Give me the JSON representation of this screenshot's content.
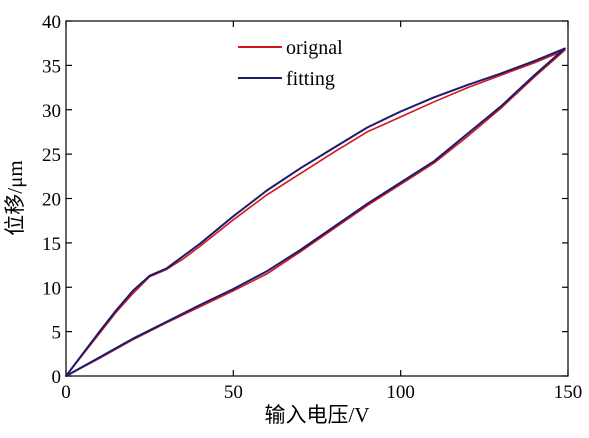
{
  "chart_data": {
    "type": "line",
    "title": "",
    "xlabel": "输入电压/V",
    "ylabel": "位移/μm",
    "xlim": [
      0,
      150
    ],
    "ylim": [
      0,
      40
    ],
    "xticks": [
      "0",
      "50",
      "100",
      "150"
    ],
    "yticks": [
      "0",
      "5",
      "10",
      "15",
      "20",
      "25",
      "30",
      "35",
      "40"
    ],
    "grid": false,
    "legend_position": "top-center",
    "series": [
      {
        "name": "orignal",
        "color": "#d8141c",
        "branches": [
          {
            "x": [
              0,
              5,
              10,
              15,
              20,
              25,
              30,
              35,
              40,
              50,
              60,
              70,
              80,
              90,
              100,
              110,
              120,
              130,
              140,
              149
            ],
            "y": [
              0,
              2.4,
              4.8,
              7.2,
              9.3,
              11.2,
              12.0,
              13.2,
              14.6,
              17.6,
              20.4,
              22.8,
              25.2,
              27.5,
              29.2,
              30.9,
              32.5,
              33.9,
              35.3,
              36.7
            ]
          },
          {
            "x": [
              149,
              140,
              130,
              120,
              110,
              100,
              90,
              80,
              70,
              60,
              50,
              40,
              30,
              20,
              10,
              0
            ],
            "y": [
              36.7,
              33.7,
              30.2,
              27.0,
              24.0,
              21.6,
              19.2,
              16.6,
              14.0,
              11.5,
              9.6,
              7.8,
              6.0,
              4.1,
              2.0,
              0
            ]
          }
        ]
      },
      {
        "name": "fitting",
        "color": "#1a1d6e",
        "branches": [
          {
            "x": [
              0,
              5,
              10,
              15,
              20,
              25,
              30,
              35,
              40,
              50,
              60,
              70,
              80,
              90,
              100,
              110,
              120,
              130,
              140,
              149
            ],
            "y": [
              0,
              2.5,
              5.0,
              7.4,
              9.6,
              11.3,
              12.1,
              13.5,
              14.9,
              18.0,
              20.9,
              23.4,
              25.7,
              28.0,
              29.8,
              31.4,
              32.8,
              34.1,
              35.5,
              36.9
            ]
          },
          {
            "x": [
              149,
              140,
              130,
              120,
              110,
              100,
              90,
              80,
              70,
              60,
              50,
              40,
              30,
              20,
              10,
              0
            ],
            "y": [
              36.9,
              33.9,
              30.4,
              27.3,
              24.2,
              21.8,
              19.4,
              16.8,
              14.2,
              11.8,
              9.8,
              8.0,
              6.1,
              4.2,
              2.1,
              0
            ]
          }
        ]
      }
    ]
  }
}
